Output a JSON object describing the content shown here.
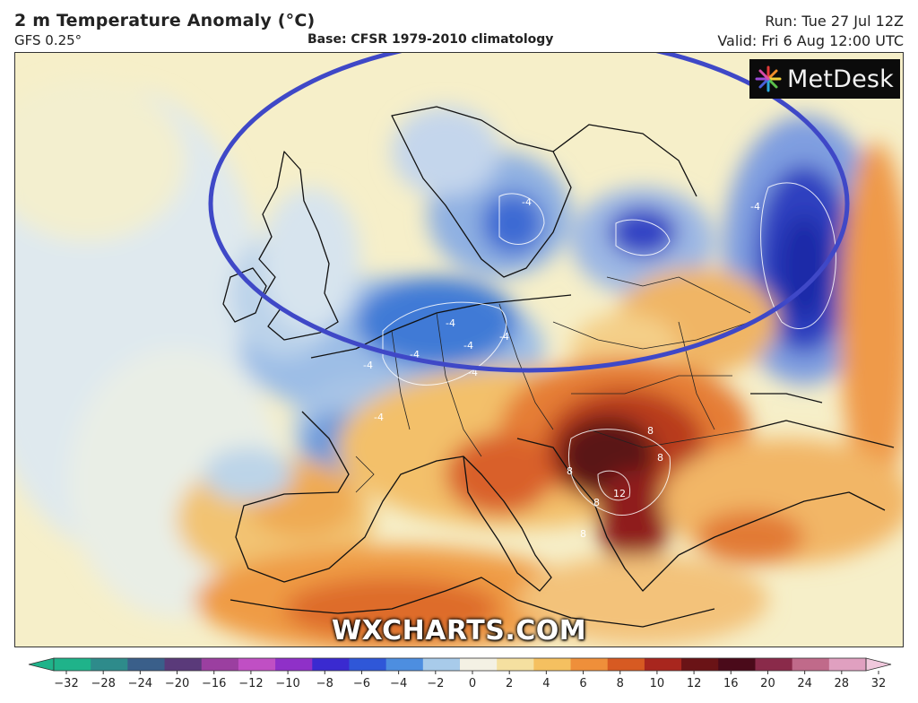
{
  "header": {
    "title": "2 m Temperature Anomaly (°C)",
    "model": "GFS 0.25°",
    "base": "Base: CFSR 1979-2010 climatology",
    "run": "Run: Tue 27 Jul 12Z",
    "valid": "Valid: Fri 6 Aug 12:00 UTC"
  },
  "logo": {
    "text": "MetDesk"
  },
  "watermark": "WXCHARTS.COM",
  "map": {
    "contour_labels": [
      "-4",
      "-4",
      "-4",
      "-4",
      "-4",
      "-4",
      "-4",
      "-4",
      "-4",
      "8",
      "8",
      "8",
      "12",
      "8",
      "8"
    ],
    "highlight": {
      "shape": "ellipse",
      "color": "#3f48c7"
    }
  },
  "colorbar": {
    "ticks": [
      "−32",
      "−28",
      "−24",
      "−20",
      "−16",
      "−12",
      "−10",
      "−8",
      "−6",
      "−4",
      "−2",
      "0",
      "2",
      "4",
      "6",
      "8",
      "10",
      "12",
      "16",
      "20",
      "24",
      "28",
      "32"
    ],
    "colors": [
      "#1fb38a",
      "#2e8b8b",
      "#3a5f8a",
      "#5a3a7a",
      "#9b3fa0",
      "#c04fc4",
      "#8f30c8",
      "#3a2ad0",
      "#2f57d8",
      "#4d8ee0",
      "#a8cbea",
      "#f4f1e4",
      "#f5e0a0",
      "#f5c060",
      "#ef8f3a",
      "#d75a22",
      "#a8261e",
      "#6a1316",
      "#4a0a1a",
      "#8a2a4a",
      "#c06a8a",
      "#e0a0c0",
      "#f0c8dc"
    ]
  }
}
